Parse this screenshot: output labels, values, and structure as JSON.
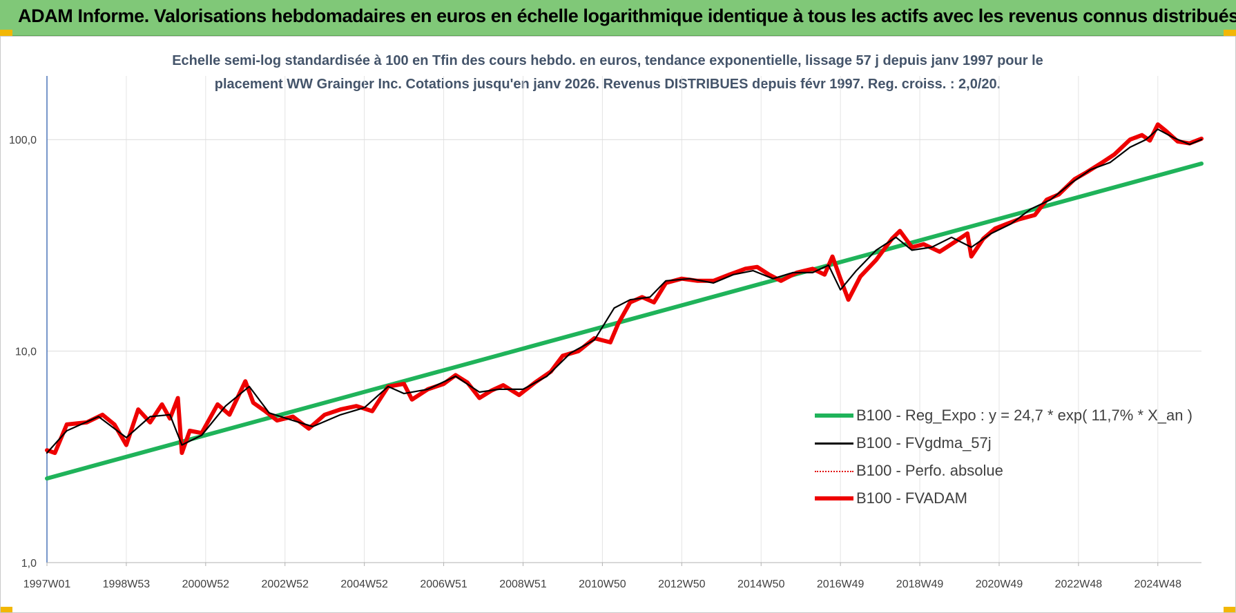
{
  "header": {
    "title": "ADAM Informe. Valorisations hebdomadaires en euros en échelle logarithmique identique à tous les actifs avec les revenus connus distribués"
  },
  "chart_data": {
    "type": "line",
    "title_line1": "Echelle semi-log standardisée à 100 en Tfin des cours hebdo. en euros, tendance exponentielle, lissage 57 j depuis janv 1997 pour le",
    "title_line2": "placement WW Grainger Inc. Cotations jusqu'en janv 2026. Revenus DISTRIBUES depuis févr 1997. Reg. croiss. : 2,0/20.",
    "y_scale": "log",
    "ylim": [
      1,
      200
    ],
    "xlim": [
      1997.0,
      2026.1
    ],
    "y_ticks": [
      1,
      10,
      100
    ],
    "y_tick_labels": [
      "1,0",
      "10,0",
      "100,0"
    ],
    "x_ticks": [
      1997.0,
      1999.0,
      2001.0,
      2003.0,
      2005.0,
      2007.0,
      2009.0,
      2011.0,
      2013.0,
      2015.0,
      2017.0,
      2019.0,
      2021.0,
      2023.0,
      2025.0
    ],
    "x_tick_labels": [
      "1997W01",
      "1998W53",
      "2000W52",
      "2002W52",
      "2004W52",
      "2006W51",
      "2008W51",
      "2010W50",
      "2012W50",
      "2014W50",
      "2016W49",
      "2018W49",
      "2020W49",
      "2022W48",
      "2024W48"
    ],
    "grid": true,
    "legend_position": "bottom-right",
    "series": [
      {
        "name": "B100 - Reg_Expo : y = 24,7 * exp( 11,7% *  X_an )",
        "color": "#1fb35a",
        "style": "thick",
        "x": [
          1997.0,
          2026.1
        ],
        "values": [
          2.5,
          77
        ]
      },
      {
        "name": "B100 - FVgdma_57j",
        "color": "#000000",
        "style": "thin",
        "x": [
          1997.0,
          1997.5,
          1998.3,
          1999.0,
          1999.6,
          2000.1,
          2000.4,
          2000.9,
          2001.5,
          2002.1,
          2002.6,
          2003.2,
          2003.7,
          2004.4,
          2005.0,
          2005.6,
          2006.0,
          2006.6,
          2007.3,
          2007.9,
          2008.4,
          2009.0,
          2009.6,
          2010.2,
          2010.8,
          2011.3,
          2011.7,
          2012.2,
          2012.6,
          2013.2,
          2013.8,
          2014.3,
          2014.8,
          2015.3,
          2015.8,
          2016.3,
          2016.7,
          2017.0,
          2017.4,
          2017.9,
          2018.4,
          2018.8,
          2019.3,
          2019.8,
          2020.3,
          2020.8,
          2021.3,
          2021.8,
          2022.3,
          2022.8,
          2023.3,
          2023.8,
          2024.3,
          2024.7,
          2025.0,
          2025.4,
          2025.8,
          2026.1
        ],
        "values": [
          3.3,
          4.2,
          4.9,
          3.9,
          4.9,
          5.0,
          3.6,
          4.0,
          5.5,
          6.8,
          5.1,
          4.7,
          4.4,
          5.0,
          5.4,
          6.8,
          6.3,
          6.6,
          7.6,
          6.4,
          6.6,
          6.6,
          7.6,
          9.8,
          11.3,
          16.0,
          17.5,
          18.0,
          21.5,
          22.0,
          21.0,
          23.0,
          24.0,
          22.0,
          23.5,
          23.5,
          25.5,
          19.5,
          24.0,
          30.0,
          34.5,
          30.0,
          31.0,
          34.5,
          31.0,
          36.0,
          40.0,
          47.0,
          52.0,
          62.0,
          72.0,
          78.0,
          92.0,
          100.0,
          112.0,
          102.0,
          95.0,
          100.0
        ]
      },
      {
        "name": "B100 - Perfo. absolue",
        "color": "#e00000",
        "style": "dotted",
        "x": [],
        "values": []
      },
      {
        "name": "B100 - FVADAM",
        "color": "#ee0000",
        "style": "thick",
        "x": [
          1997.0,
          1997.2,
          1997.5,
          1998.0,
          1998.4,
          1998.7,
          1999.0,
          1999.3,
          1999.6,
          1999.9,
          2000.1,
          2000.3,
          2000.4,
          2000.6,
          2000.9,
          2001.3,
          2001.6,
          2002.0,
          2002.2,
          2002.5,
          2002.8,
          2003.2,
          2003.6,
          2004.0,
          2004.4,
          2004.8,
          2005.2,
          2005.6,
          2006.0,
          2006.2,
          2006.6,
          2007.0,
          2007.3,
          2007.6,
          2007.9,
          2008.2,
          2008.5,
          2008.9,
          2009.3,
          2009.7,
          2010.0,
          2010.4,
          2010.8,
          2011.2,
          2011.4,
          2011.7,
          2012.0,
          2012.3,
          2012.6,
          2013.0,
          2013.4,
          2013.8,
          2014.2,
          2014.6,
          2014.9,
          2015.2,
          2015.5,
          2015.9,
          2016.3,
          2016.6,
          2016.8,
          2017.0,
          2017.2,
          2017.5,
          2017.9,
          2018.3,
          2018.5,
          2018.8,
          2019.1,
          2019.5,
          2019.9,
          2020.2,
          2020.3,
          2020.6,
          2020.9,
          2021.2,
          2021.5,
          2021.9,
          2022.2,
          2022.5,
          2022.9,
          2023.2,
          2023.6,
          2023.9,
          2024.3,
          2024.6,
          2024.8,
          2025.0,
          2025.2,
          2025.5,
          2025.8,
          2026.1
        ],
        "values": [
          3.4,
          3.3,
          4.5,
          4.6,
          5.0,
          4.5,
          3.6,
          5.3,
          4.6,
          5.6,
          4.8,
          6.0,
          3.3,
          4.2,
          4.1,
          5.6,
          5.0,
          7.2,
          5.7,
          5.2,
          4.7,
          4.9,
          4.3,
          5.0,
          5.3,
          5.5,
          5.2,
          6.8,
          7.0,
          5.9,
          6.6,
          7.0,
          7.7,
          7.1,
          6.0,
          6.5,
          6.9,
          6.2,
          7.1,
          8.0,
          9.5,
          10.0,
          11.5,
          11.0,
          13.5,
          17.0,
          18.0,
          17.0,
          21.0,
          22.0,
          21.5,
          21.5,
          23.0,
          24.5,
          25.0,
          23.0,
          21.5,
          23.5,
          24.5,
          23.0,
          28.0,
          22.0,
          17.5,
          22.5,
          27.0,
          34.0,
          37.0,
          31.0,
          32.0,
          29.5,
          33.0,
          36.0,
          28.0,
          34.0,
          38.0,
          40.0,
          42.0,
          44.0,
          52.0,
          55.0,
          65.0,
          70.0,
          78.0,
          85.0,
          100.0,
          105.0,
          99.0,
          118.0,
          110.0,
          98.0,
          96.0,
          101.0
        ]
      }
    ]
  }
}
